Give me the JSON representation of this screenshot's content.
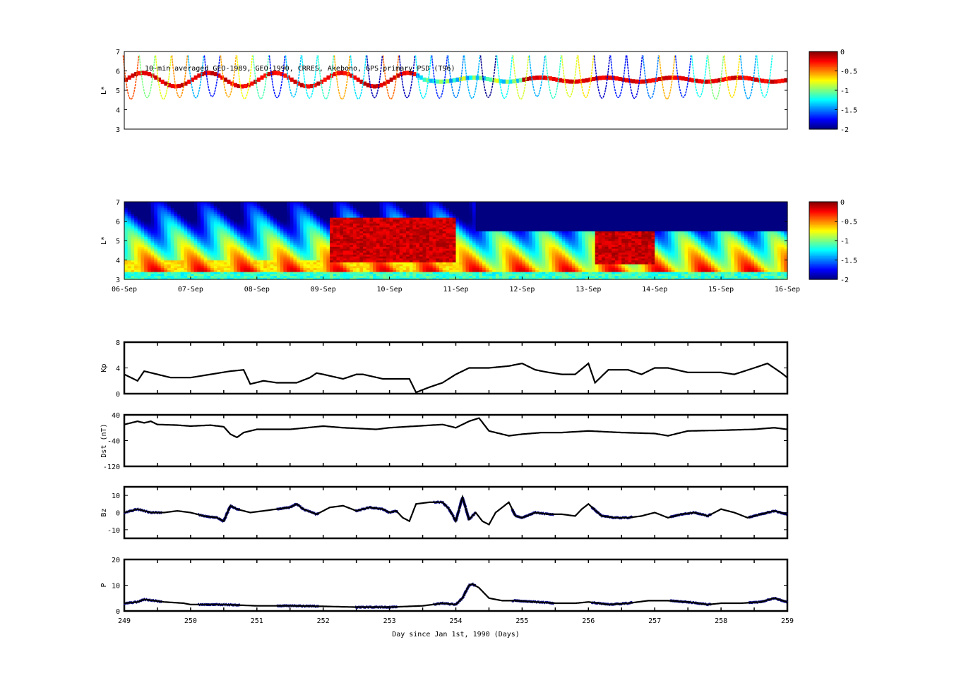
{
  "chart_data": [
    {
      "id": "psd_observed",
      "type": "heatmap",
      "title": "10-min averaged GEO-1989, GEO-1990, CRRES, Akebono, GPS  primary PSD (T96)",
      "ylabel": "L*",
      "ylim": [
        3,
        7
      ],
      "yticks": [
        "3",
        "4",
        "5",
        "6",
        "7"
      ],
      "xlim": [
        249,
        259
      ],
      "colorbar": {
        "range": [
          -2,
          0
        ],
        "ticks": [
          "0",
          "-0.5",
          "-1",
          "-1.5",
          "-2"
        ],
        "colormap": "jet"
      },
      "description": "Sparse satellite-track PSD samples (log scale) plotted versus L*; GEO tracks near L*~5.5-6 mostly dark red, elliptical-orbit passes sweep L*=3-7"
    },
    {
      "id": "psd_reanalysis",
      "type": "heatmap",
      "ylabel": "L*",
      "ylim": [
        3,
        7
      ],
      "yticks": [
        "3",
        "4",
        "5",
        "6",
        "7"
      ],
      "xlim": [
        249,
        259
      ],
      "xticks": [
        "06-Sep",
        "07-Sep",
        "08-Sep",
        "09-Sep",
        "10-Sep",
        "11-Sep",
        "12-Sep",
        "13-Sep",
        "14-Sep",
        "15-Sep",
        "16-Sep"
      ],
      "colorbar": {
        "range": [
          -2,
          0
        ],
        "ticks": [
          "0",
          "-0.5",
          "-1",
          "-1.5",
          "-2"
        ],
        "colormap": "jet"
      },
      "features": [
        {
          "day": [
            252.1,
            254.0
          ],
          "L": [
            3.9,
            6.2
          ],
          "level": -0.05
        },
        {
          "day": [
            256.1,
            257.0
          ],
          "L": [
            3.8,
            5.6
          ],
          "level": -0.05
        },
        {
          "day": [
            249.0,
            254.3
          ],
          "L": [
            3.0,
            4.0
          ],
          "level": -0.6
        },
        {
          "day": [
            254.3,
            259.0
          ],
          "L": [
            5.5,
            7.0
          ],
          "level": -2.0
        }
      ]
    },
    {
      "id": "kp",
      "type": "line",
      "ylabel": "Kp",
      "ylim": [
        0,
        8
      ],
      "yticks": [
        "0",
        "4",
        "8"
      ],
      "xlim": [
        249,
        259
      ],
      "series": [
        {
          "x": [
            249.0,
            249.2,
            249.3,
            249.5,
            249.7,
            250.0,
            250.3,
            250.6,
            250.8,
            250.9,
            251.1,
            251.3,
            251.6,
            251.8,
            251.9,
            252.0,
            252.3,
            252.5,
            252.6,
            252.9,
            253.1,
            253.3,
            253.4,
            253.6,
            253.8,
            254.0,
            254.2,
            254.5,
            254.8,
            255.0,
            255.2,
            255.4,
            255.6,
            255.8,
            256.0,
            256.1,
            256.3,
            256.6,
            256.8,
            257.0,
            257.2,
            257.5,
            257.8,
            258.0,
            258.2,
            258.5,
            258.7,
            258.9,
            259.0
          ],
          "y": [
            3.0,
            2.0,
            3.5,
            3.0,
            2.5,
            2.5,
            3.0,
            3.5,
            3.7,
            1.5,
            2.0,
            1.7,
            1.7,
            2.5,
            3.2,
            3.0,
            2.3,
            3.0,
            3.0,
            2.3,
            2.3,
            2.3,
            0.2,
            1.0,
            1.7,
            3.0,
            4.0,
            4.0,
            4.3,
            4.7,
            3.7,
            3.3,
            3.0,
            3.0,
            4.7,
            1.7,
            3.7,
            3.7,
            3.0,
            4.0,
            4.0,
            3.3,
            3.3,
            3.3,
            3.0,
            4.0,
            4.7,
            3.3,
            2.5
          ]
        }
      ]
    },
    {
      "id": "dst",
      "type": "line",
      "ylabel": "Dst (nT)",
      "ylim": [
        -120,
        40
      ],
      "yticks": [
        "-120",
        "-40",
        "40"
      ],
      "xlim": [
        249,
        259
      ],
      "series": [
        {
          "x": [
            249.0,
            249.2,
            249.3,
            249.4,
            249.5,
            249.8,
            250.0,
            250.3,
            250.5,
            250.6,
            250.7,
            250.8,
            251.0,
            251.5,
            252.0,
            252.3,
            252.8,
            253.0,
            253.4,
            253.8,
            254.0,
            254.2,
            254.35,
            254.5,
            254.8,
            255.0,
            255.3,
            255.6,
            256.0,
            256.5,
            257.0,
            257.2,
            257.5,
            258.0,
            258.5,
            258.8,
            259.0
          ],
          "y": [
            10,
            20,
            15,
            20,
            10,
            8,
            5,
            8,
            3,
            -20,
            -30,
            -15,
            -5,
            -5,
            5,
            0,
            -5,
            0,
            5,
            10,
            0,
            20,
            30,
            -10,
            -25,
            -20,
            -15,
            -15,
            -10,
            -15,
            -18,
            -25,
            -10,
            -8,
            -5,
            0,
            -5
          ]
        }
      ]
    },
    {
      "id": "bz",
      "type": "line",
      "ylabel": "Bz",
      "ylim": [
        -15,
        15
      ],
      "yticks": [
        "-10",
        "0",
        "10"
      ],
      "xlim": [
        249,
        259
      ],
      "series": [
        {
          "x": [
            249.0,
            249.2,
            249.4,
            249.6,
            249.8,
            250.0,
            250.2,
            250.4,
            250.5,
            250.6,
            250.7,
            250.9,
            251.1,
            251.3,
            251.5,
            251.6,
            251.7,
            251.9,
            252.1,
            252.3,
            252.5,
            252.7,
            252.9,
            253.0,
            253.1,
            253.2,
            253.3,
            253.4,
            253.6,
            253.8,
            253.9,
            254.0,
            254.1,
            254.2,
            254.3,
            254.4,
            254.5,
            254.6,
            254.8,
            254.9,
            255.0,
            255.2,
            255.4,
            255.6,
            255.8,
            255.9,
            256.0,
            256.2,
            256.4,
            256.6,
            256.8,
            257.0,
            257.2,
            257.4,
            257.6,
            257.8,
            258.0,
            258.2,
            258.4,
            258.6,
            258.8,
            259.0
          ],
          "y": [
            0,
            2,
            0,
            0,
            1,
            0,
            -2,
            -3,
            -5,
            4,
            2,
            0,
            1,
            2,
            3,
            5,
            2,
            -1,
            3,
            4,
            1,
            3,
            2,
            0,
            1,
            -3,
            -5,
            5,
            6,
            6,
            2,
            -5,
            9,
            -4,
            0,
            -5,
            -7,
            0,
            6,
            -2,
            -3,
            0,
            -1,
            -1,
            -2,
            2,
            5,
            -2,
            -3,
            -3,
            -2,
            0,
            -3,
            -1,
            0,
            -2,
            2,
            0,
            -3,
            -1,
            1,
            -1
          ]
        }
      ]
    },
    {
      "id": "pressure",
      "type": "line",
      "ylabel": "P",
      "xlabel": "Day since Jan 1st, 1990 (Days)",
      "ylim": [
        0,
        20
      ],
      "yticks": [
        "0",
        "10",
        "20"
      ],
      "xlim": [
        249,
        259
      ],
      "xticks": [
        "249",
        "250",
        "251",
        "252",
        "253",
        "254",
        "255",
        "256",
        "257",
        "258",
        "259"
      ],
      "series": [
        {
          "x": [
            249.0,
            249.2,
            249.3,
            249.6,
            249.9,
            250.0,
            250.5,
            251.0,
            251.5,
            252.0,
            252.5,
            253.0,
            253.5,
            253.8,
            254.0,
            254.1,
            254.2,
            254.25,
            254.35,
            254.5,
            254.7,
            254.9,
            255.2,
            255.5,
            255.8,
            256.0,
            256.3,
            256.6,
            256.9,
            257.2,
            257.5,
            257.8,
            258.0,
            258.3,
            258.6,
            258.8,
            259.0
          ],
          "y": [
            3.0,
            3.5,
            4.5,
            3.5,
            3.0,
            2.5,
            2.5,
            2.0,
            2.0,
            1.8,
            1.5,
            1.5,
            2.0,
            3.0,
            2.5,
            5.0,
            10.0,
            10.5,
            9.0,
            5.0,
            4.0,
            4.0,
            3.5,
            3.0,
            3.0,
            3.5,
            2.5,
            3.0,
            4.0,
            4.0,
            3.5,
            2.5,
            3.0,
            3.0,
            3.5,
            5.0,
            3.5
          ]
        }
      ]
    }
  ]
}
